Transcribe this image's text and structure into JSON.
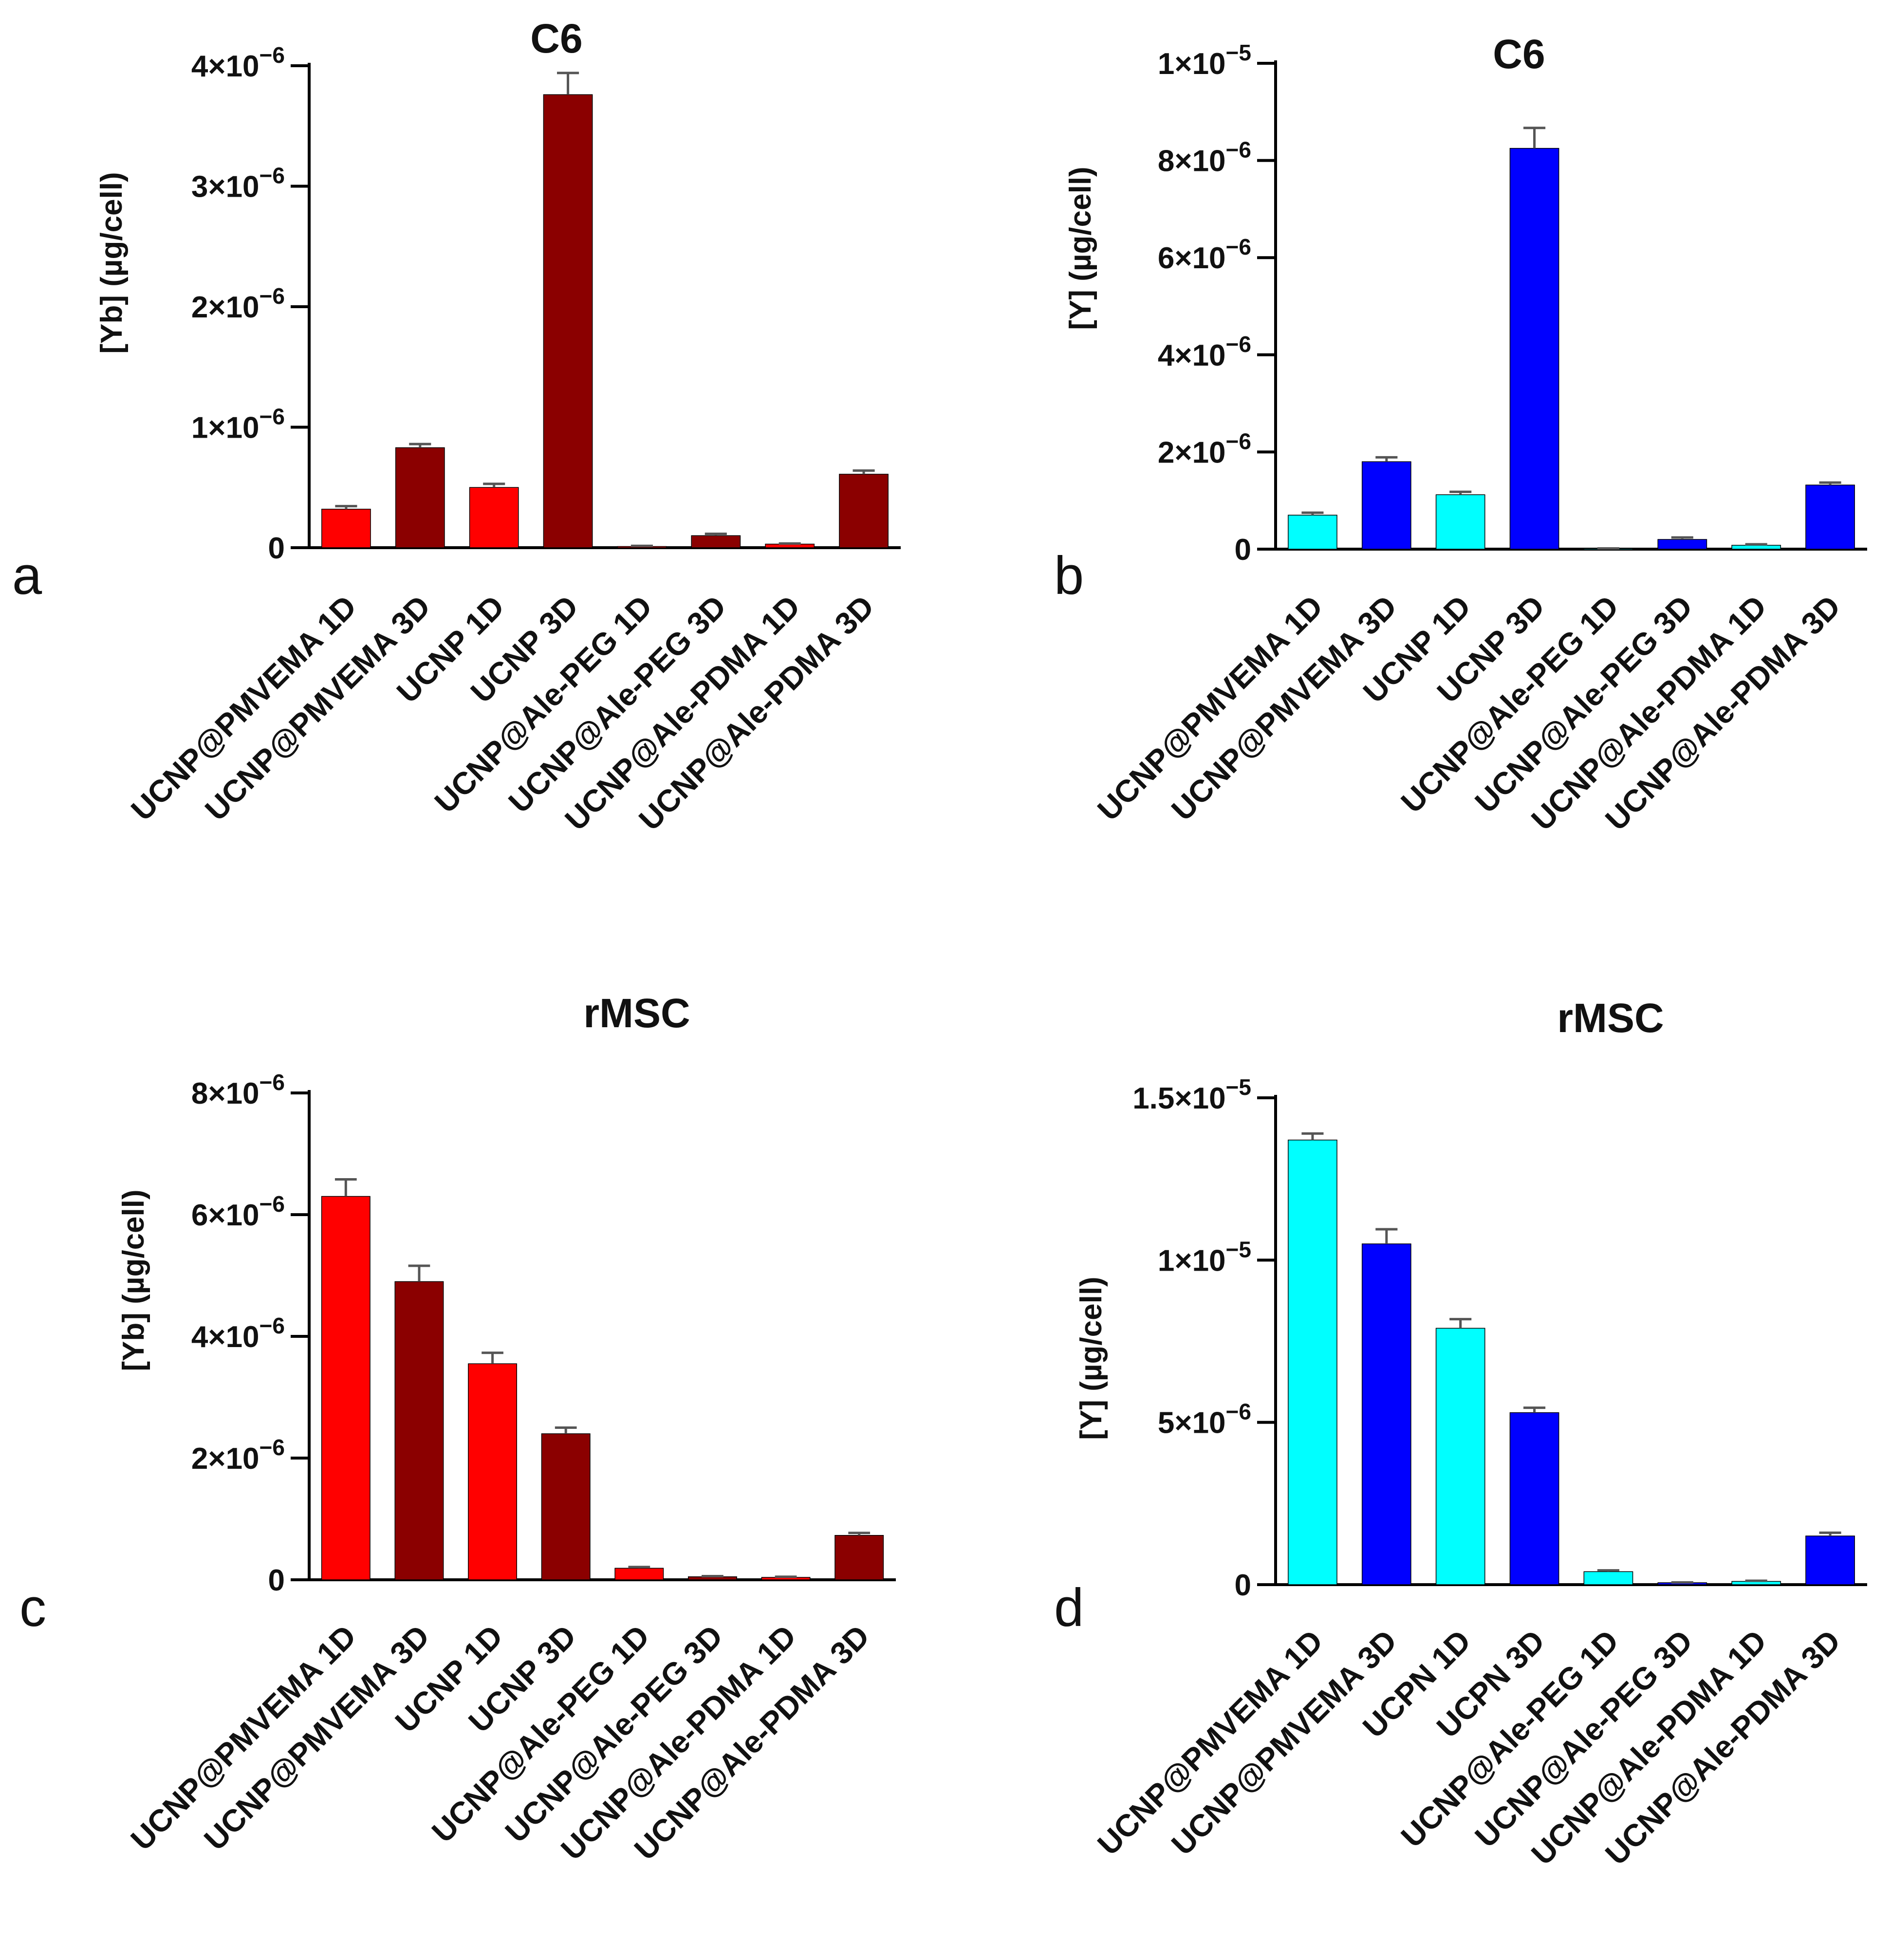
{
  "chart_data": [
    {
      "type": "bar",
      "panel_label": "a",
      "title": "C6",
      "ylabel": "[Yb] (µg/cell)",
      "xlabel": "",
      "ylim": [
        0,
        4e-06
      ],
      "yticks": [
        0,
        1e-06,
        2e-06,
        3e-06,
        4e-06
      ],
      "ytick_labels": [
        {
          "mant": "0",
          "exp": ""
        },
        {
          "mant": "1×10",
          "exp": "−6"
        },
        {
          "mant": "2×10",
          "exp": "−6"
        },
        {
          "mant": "3×10",
          "exp": "−6"
        },
        {
          "mant": "4×10",
          "exp": "−6"
        }
      ],
      "categories": [
        "UCNP@PMVEMA 1D",
        "UCNP@PMVEMA 3D",
        "UCNP 1D",
        "UCNP 3D",
        "UCNP@Ale-PEG 1D",
        "UCNP@Ale-PEG 3D",
        "UCNP@Ale-PDMA 1D",
        "UCNP@Ale-PDMA 3D"
      ],
      "values": [
        3.2e-07,
        8.3e-07,
        5e-07,
        3.76e-06,
        1e-08,
        1e-07,
        3e-08,
        6.1e-07
      ],
      "errors": [
        2.5e-08,
        3e-08,
        3e-08,
        1.8e-07,
        5e-09,
        1.5e-08,
        5e-09,
        3e-08
      ],
      "colors": [
        "#ff0000",
        "#8b0000",
        "#ff0000",
        "#8b0000",
        "#ff0000",
        "#8b0000",
        "#ff0000",
        "#8b0000"
      ]
    },
    {
      "type": "bar",
      "panel_label": "b",
      "title": "C6",
      "ylabel": "[Y] (µg/cell)",
      "xlabel": "",
      "ylim": [
        0,
        1e-05
      ],
      "yticks": [
        0,
        2e-06,
        4e-06,
        6e-06,
        8e-06,
        1e-05
      ],
      "ytick_labels": [
        {
          "mant": "0",
          "exp": ""
        },
        {
          "mant": "2×10",
          "exp": "−6"
        },
        {
          "mant": "4×10",
          "exp": "−6"
        },
        {
          "mant": "6×10",
          "exp": "−6"
        },
        {
          "mant": "8×10",
          "exp": "−6"
        },
        {
          "mant": "1×10",
          "exp": "−5"
        }
      ],
      "categories": [
        "UCNP@PMVEMA 1D",
        "UCNP@PMVEMA 3D",
        "UCNP 1D",
        "UCNP 3D",
        "UCNP@Ale-PEG 1D",
        "UCNP@Ale-PEG 3D",
        "UCNP@Ale-PDMA 1D",
        "UCNP@Ale-PDMA 3D"
      ],
      "values": [
        7e-07,
        1.8e-06,
        1.12e-06,
        8.25e-06,
        1e-08,
        2e-07,
        8e-08,
        1.32e-06
      ],
      "errors": [
        5e-08,
        9e-08,
        6e-08,
        4.2e-07,
        5e-09,
        4e-08,
        2e-08,
        5e-08
      ],
      "colors": [
        "#00ffff",
        "#0000ff",
        "#00ffff",
        "#0000ff",
        "#00ffff",
        "#0000ff",
        "#00ffff",
        "#0000ff"
      ]
    },
    {
      "type": "bar",
      "panel_label": "c",
      "title": "rMSC",
      "ylabel": "[Yb] (µg/cell)",
      "xlabel": "",
      "ylim": [
        0,
        8e-06
      ],
      "yticks": [
        0,
        2e-06,
        4e-06,
        6e-06,
        8e-06
      ],
      "ytick_labels": [
        {
          "mant": "0",
          "exp": ""
        },
        {
          "mant": "2×10",
          "exp": "−6"
        },
        {
          "mant": "4×10",
          "exp": "−6"
        },
        {
          "mant": "6×10",
          "exp": "−6"
        },
        {
          "mant": "8×10",
          "exp": "−6"
        }
      ],
      "categories": [
        "UCNP@PMVEMA 1D",
        "UCNP@PMVEMA 3D",
        "UCNP 1D",
        "UCNP 3D",
        "UCNP@Ale-PEG 1D",
        "UCNP@Ale-PEG 3D",
        "UCNP@Ale-PDMA 1D",
        "UCNP@Ale-PDMA 3D"
      ],
      "values": [
        6.3e-06,
        4.9e-06,
        3.55e-06,
        2.4e-06,
        1.9e-07,
        5e-08,
        4e-08,
        7.3e-07
      ],
      "errors": [
        2.8e-07,
        2.6e-07,
        1.8e-07,
        1e-07,
        2e-08,
        1e-08,
        1e-08,
        4e-08
      ],
      "colors": [
        "#ff0000",
        "#8b0000",
        "#ff0000",
        "#8b0000",
        "#ff0000",
        "#8b0000",
        "#ff0000",
        "#8b0000"
      ]
    },
    {
      "type": "bar",
      "panel_label": "d",
      "title": "rMSC",
      "ylabel": "[Y] (µg/cell)",
      "xlabel": "",
      "ylim": [
        0,
        1.5e-05
      ],
      "yticks": [
        0,
        5e-06,
        1e-05,
        1.5e-05
      ],
      "ytick_labels": [
        {
          "mant": "0",
          "exp": ""
        },
        {
          "mant": "5×10",
          "exp": "−6"
        },
        {
          "mant": "1×10",
          "exp": "−5"
        },
        {
          "mant": "1.5×10",
          "exp": "−5"
        }
      ],
      "categories": [
        "UCNP@PMVEMA 1D",
        "UCNP@PMVEMA 3D",
        "UCPN 1D",
        "UCPN 3D",
        "UCNP@Ale-PEG 1D",
        "UCNP@Ale-PEG 3D",
        "UCNP@Ale-PDMA 1D",
        "UCNP@Ale-PDMA 3D"
      ],
      "values": [
        1.37e-05,
        1.05e-05,
        7.9e-06,
        5.3e-06,
        4e-07,
        6e-08,
        1e-07,
        1.5e-06
      ],
      "errors": [
        2e-07,
        4.5e-07,
        2.8e-07,
        1.5e-07,
        4e-08,
        1e-08,
        2e-08,
        1e-07
      ],
      "colors": [
        "#00ffff",
        "#0000ff",
        "#00ffff",
        "#0000ff",
        "#00ffff",
        "#0000ff",
        "#00ffff",
        "#0000ff"
      ]
    }
  ]
}
